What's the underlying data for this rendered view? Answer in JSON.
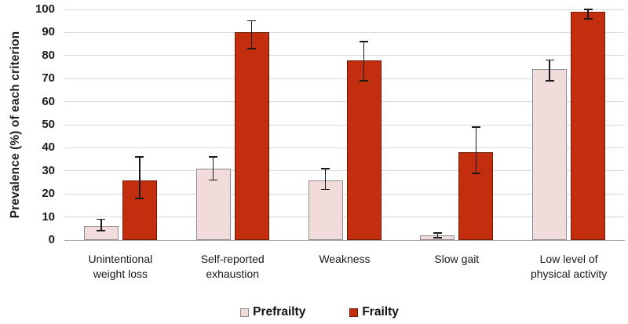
{
  "chart_data": {
    "type": "bar",
    "title": "",
    "ylabel": "Prevalence (%) of each criterion",
    "xlabel": "",
    "ylim": [
      0,
      100
    ],
    "ytick_interval": 10,
    "yticks": [
      "0",
      "10",
      "20",
      "30",
      "40",
      "50",
      "60",
      "70",
      "80",
      "90",
      "100"
    ],
    "grid": true,
    "legend_position": "bottom",
    "categories": [
      "Unintentional weight loss",
      "Self-reported exhaustion",
      "Weakness",
      "Slow gait",
      "Low level of physical activity"
    ],
    "category_label_lines": [
      [
        "Unintentional",
        "weight loss"
      ],
      [
        "Self-reported",
        "exhaustion"
      ],
      [
        "Weakness"
      ],
      [
        "Slow gait"
      ],
      [
        "Low level of",
        "physical activity"
      ]
    ],
    "series": [
      {
        "name": "Prefrailty",
        "fill_color": "#f2dcdb",
        "border_color": "#8c8c8c",
        "values": [
          6,
          31,
          26,
          2,
          74
        ],
        "error_low": [
          4,
          26,
          22,
          1,
          69
        ],
        "error_high": [
          9,
          36,
          31,
          3,
          78
        ]
      },
      {
        "name": "Frailty",
        "fill_color": "#c22e0e",
        "border_color": "#701c06",
        "values": [
          26,
          90,
          78,
          38,
          99
        ],
        "error_low": [
          18,
          83,
          69,
          29,
          96
        ],
        "error_high": [
          36,
          95,
          86,
          49,
          100
        ]
      }
    ]
  },
  "colors": {
    "background": "#ffffff",
    "gridline": "#d9d9d9",
    "axis_line": "#a6a6a6",
    "text": "#1c1c1c",
    "error_bar": "#1a1a1a"
  }
}
